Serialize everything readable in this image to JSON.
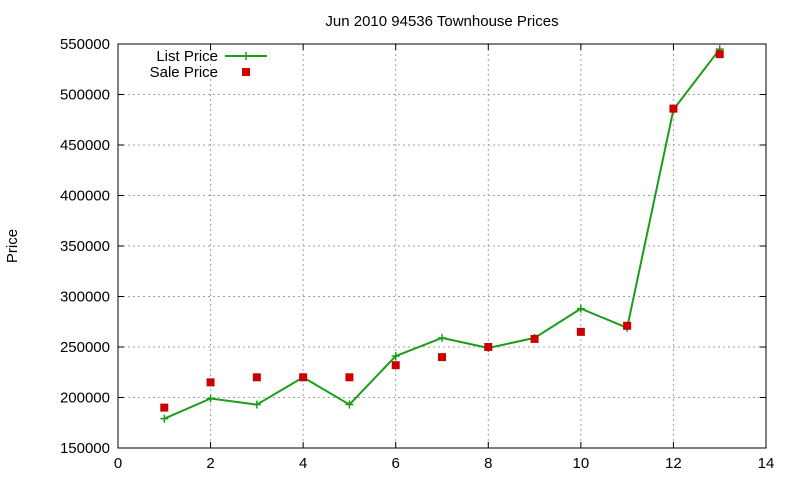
{
  "chart_data": {
    "type": "line",
    "title": "Jun 2010 94536 Townhouse Prices",
    "xlabel": "",
    "ylabel": "Price",
    "xlim": [
      0,
      14
    ],
    "ylim": [
      150000,
      550000
    ],
    "x_ticks": [
      0,
      2,
      4,
      6,
      8,
      10,
      12,
      14
    ],
    "y_ticks": [
      150000,
      200000,
      250000,
      300000,
      350000,
      400000,
      450000,
      500000,
      550000
    ],
    "grid": true,
    "legend_position": "top-left",
    "series": [
      {
        "name": "List Price",
        "style": "line-with-plus-markers",
        "color": "#1a9e1a",
        "x": [
          1,
          2,
          3,
          4,
          5,
          6,
          7,
          8,
          9,
          10,
          11,
          12,
          13
        ],
        "y": [
          179000,
          199000,
          193000,
          220000,
          193000,
          241000,
          259000,
          249000,
          259000,
          288000,
          269000,
          485000,
          545000
        ]
      },
      {
        "name": "Sale Price",
        "style": "square-markers",
        "color": "#cc0000",
        "x": [
          1,
          2,
          3,
          4,
          5,
          6,
          7,
          8,
          9,
          10,
          11,
          12,
          13
        ],
        "y": [
          190000,
          215000,
          220000,
          220000,
          220000,
          232000,
          240000,
          250000,
          258000,
          265000,
          271000,
          486000,
          540000
        ]
      }
    ]
  }
}
